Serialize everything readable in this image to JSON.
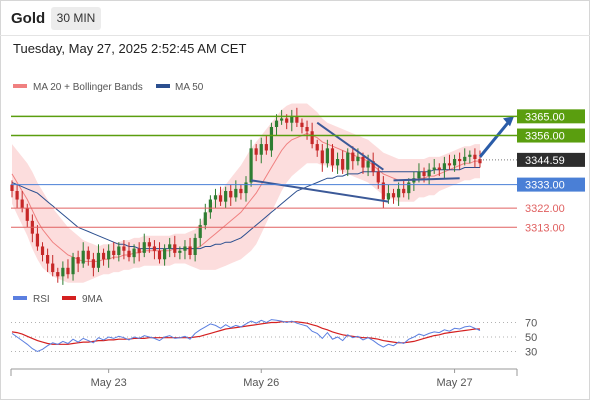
{
  "header": {
    "title": "Gold",
    "timeframe": "30 MIN",
    "datetime": "Tuesday, May 27, 2025 2:52:45 AM CET"
  },
  "colors": {
    "up": "#2e7d32",
    "down": "#c62828",
    "bollinger_fill": "#fbd7d7",
    "ma20": "#f08080",
    "ma50": "#2b4f8f",
    "resistance": "#5a9e0f",
    "pivot": "#4a7fd6",
    "support": "#e06060",
    "rsi": "#5b7fe0",
    "rsi_ma": "#d42020",
    "trendline": "#3b5998"
  },
  "chart_data": [
    {
      "type": "candlestick",
      "legend": [
        {
          "name": "MA 20 + Bollinger Bands",
          "color": "#f08080"
        },
        {
          "name": "MA 50",
          "color": "#2b4f8f"
        }
      ],
      "x_ticks": [
        "May 23",
        "May 26",
        "May 27"
      ],
      "ylim": [
        3285,
        3375
      ],
      "levels": [
        {
          "label": "3365.00",
          "value": 3365.0,
          "kind": "resistance"
        },
        {
          "label": "3356.00",
          "value": 3356.0,
          "kind": "resistance"
        },
        {
          "label": "3344.59",
          "value": 3344.59,
          "kind": "current"
        },
        {
          "label": "3333.00",
          "value": 3333.0,
          "kind": "pivot"
        },
        {
          "label": "3322.00",
          "value": 3322.0,
          "kind": "support"
        },
        {
          "label": "3313.00",
          "value": 3313.0,
          "kind": "support"
        }
      ],
      "close": [
        3330,
        3326,
        3322,
        3316,
        3310,
        3304,
        3300,
        3296,
        3292,
        3290,
        3294,
        3291,
        3299,
        3296,
        3302,
        3298,
        3294,
        3301,
        3298,
        3302,
        3300,
        3304,
        3302,
        3299,
        3303,
        3301,
        3306,
        3304,
        3302,
        3298,
        3303,
        3305,
        3301,
        3302,
        3304,
        3300,
        3308,
        3314,
        3320,
        3326,
        3328,
        3325,
        3330,
        3327,
        3331,
        3329,
        3334,
        3350,
        3347,
        3352,
        3349,
        3360,
        3363,
        3364,
        3362,
        3365,
        3362,
        3360,
        3358,
        3352,
        3349,
        3343,
        3350,
        3342,
        3345,
        3340,
        3348,
        3344,
        3346,
        3341,
        3344,
        3339,
        3334,
        3326,
        3329,
        3327,
        3331,
        3329,
        3334,
        3336,
        3339,
        3337,
        3340,
        3341,
        3340,
        3343,
        3342,
        3345,
        3344,
        3346,
        3347,
        3345,
        3343
      ],
      "ma20": [
        3338,
        3334,
        3330,
        3326,
        3321,
        3316,
        3312,
        3309,
        3306,
        3304,
        3302,
        3300,
        3299,
        3298,
        3297,
        3297,
        3297,
        3297,
        3298,
        3298,
        3299,
        3299,
        3300,
        3300,
        3301,
        3301,
        3302,
        3302,
        3302,
        3302,
        3302,
        3302,
        3303,
        3303,
        3303,
        3303,
        3303,
        3304,
        3306,
        3308,
        3310,
        3312,
        3314,
        3316,
        3318,
        3320,
        3323,
        3326,
        3329,
        3333,
        3337,
        3341,
        3345,
        3349,
        3352,
        3354,
        3355,
        3356,
        3357,
        3356,
        3355,
        3353,
        3352,
        3351,
        3350,
        3349,
        3348,
        3347,
        3346,
        3345,
        3344,
        3342,
        3340,
        3338,
        3337,
        3336,
        3335,
        3335,
        3335,
        3335,
        3336,
        3336,
        3337,
        3337,
        3338,
        3339,
        3340,
        3341,
        3342,
        3343,
        3343,
        3344,
        3344
      ],
      "ma50": [
        3334,
        3333,
        3332,
        3331,
        3330,
        3329,
        3327,
        3325,
        3323,
        3321,
        3319,
        3317,
        3315,
        3313,
        3312,
        3311,
        3310,
        3309,
        3308,
        3307,
        3306,
        3305,
        3305,
        3304,
        3304,
        3303,
        3303,
        3303,
        3303,
        3303,
        3303,
        3303,
        3303,
        3303,
        3303,
        3303,
        3303,
        3303,
        3304,
        3304,
        3305,
        3305,
        3306,
        3306,
        3307,
        3308,
        3310,
        3312,
        3314,
        3316,
        3318,
        3320,
        3322,
        3324,
        3326,
        3328,
        3330,
        3331,
        3332,
        3333,
        3334,
        3335,
        3336,
        3336,
        3337,
        3337,
        3338,
        3338,
        3338,
        3339,
        3339,
        3339,
        3339,
        3339,
        3339,
        3339,
        3339,
        3339,
        3339,
        3339,
        3339,
        3339,
        3339,
        3340,
        3340,
        3340,
        3340,
        3340,
        3340,
        3341,
        3341,
        3341,
        3341
      ],
      "bb_width": [
        14,
        15,
        16,
        17,
        18,
        18,
        18,
        17,
        16,
        15,
        14,
        13,
        12,
        11,
        10,
        9,
        8,
        7,
        7,
        7,
        7,
        7,
        7,
        7,
        7,
        7,
        7,
        7,
        7,
        7,
        7,
        7,
        7,
        7,
        7,
        8,
        9,
        11,
        13,
        15,
        17,
        18,
        19,
        20,
        21,
        22,
        23,
        24,
        24,
        23,
        22,
        21,
        20,
        19,
        18,
        17,
        16,
        15,
        14,
        13,
        12,
        11,
        10,
        10,
        10,
        10,
        10,
        10,
        10,
        10,
        10,
        10,
        10,
        10,
        10,
        10,
        10,
        10,
        10,
        10,
        9,
        9,
        9,
        9,
        8,
        8,
        8,
        8,
        8,
        8,
        8,
        8,
        8
      ]
    },
    {
      "type": "line",
      "legend": [
        {
          "name": "RSI",
          "color": "#5b7fe0"
        },
        {
          "name": "9MA",
          "color": "#d42020"
        }
      ],
      "y_ticks": [
        70,
        50,
        30
      ],
      "ylim": [
        10,
        90
      ],
      "series": [
        {
          "name": "RSI",
          "values": [
            55,
            50,
            45,
            40,
            34,
            30,
            33,
            38,
            42,
            40,
            44,
            41,
            47,
            43,
            48,
            45,
            42,
            49,
            46,
            50,
            48,
            51,
            49,
            46,
            50,
            48,
            52,
            50,
            48,
            45,
            50,
            52,
            48,
            49,
            51,
            47,
            55,
            60,
            64,
            68,
            66,
            62,
            67,
            63,
            66,
            64,
            68,
            72,
            69,
            73,
            70,
            74,
            73,
            72,
            70,
            72,
            69,
            67,
            65,
            58,
            55,
            48,
            56,
            47,
            50,
            45,
            53,
            49,
            51,
            46,
            49,
            45,
            40,
            36,
            40,
            38,
            43,
            41,
            47,
            50,
            54,
            52,
            55,
            57,
            56,
            60,
            58,
            62,
            61,
            64,
            65,
            62,
            59
          ]
        },
        {
          "name": "9MA",
          "values": [
            57,
            56,
            54,
            51,
            48,
            45,
            43,
            41,
            40,
            40,
            40,
            40,
            41,
            42,
            43,
            43,
            44,
            45,
            45,
            46,
            46,
            47,
            47,
            47,
            48,
            48,
            48,
            49,
            49,
            49,
            49,
            49,
            49,
            49,
            49,
            49,
            50,
            51,
            53,
            55,
            57,
            59,
            61,
            62,
            63,
            64,
            65,
            66,
            67,
            68,
            69,
            70,
            70,
            71,
            71,
            71,
            71,
            70,
            69,
            67,
            65,
            62,
            60,
            57,
            55,
            53,
            52,
            51,
            50,
            49,
            49,
            48,
            47,
            45,
            44,
            43,
            42,
            42,
            43,
            44,
            46,
            48,
            50,
            52,
            53,
            55,
            56,
            57,
            58,
            59,
            60,
            61,
            61
          ]
        }
      ]
    }
  ]
}
